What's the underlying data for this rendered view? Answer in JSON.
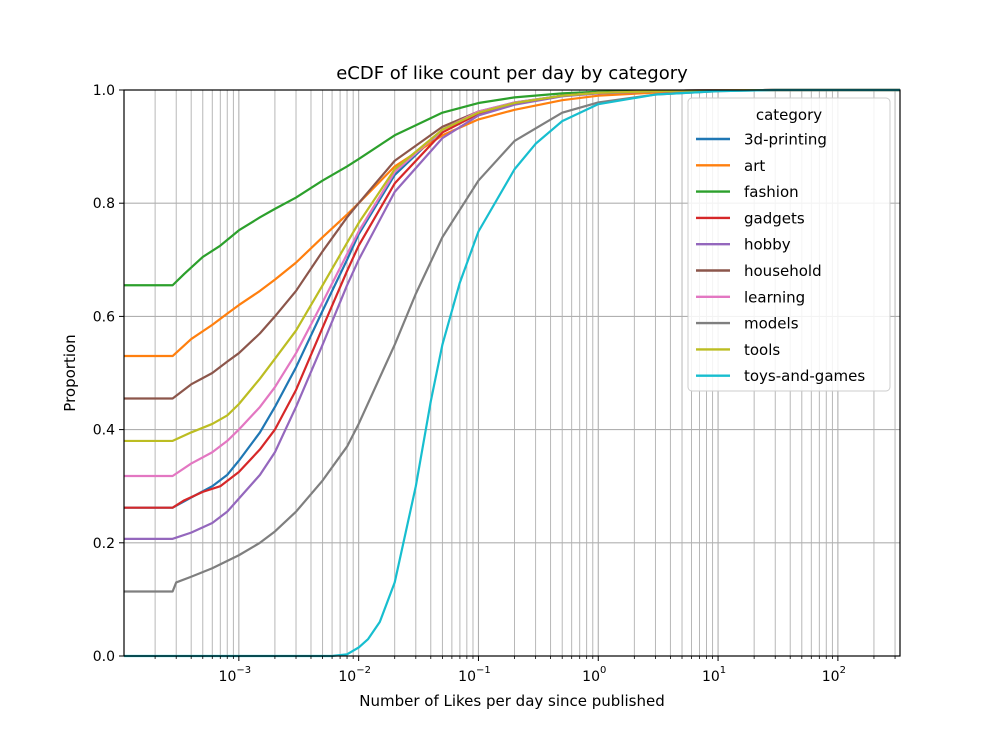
{
  "chart_data": {
    "type": "line",
    "title": "eCDF of like count per day by category",
    "xlabel": "Number of Likes per day since published",
    "ylabel": "Proportion",
    "x_scale": "log",
    "xlim": [
      0.00011,
      330
    ],
    "ylim": [
      0,
      1.0
    ],
    "grid": "major and minor",
    "x_ticks": [
      {
        "value": 0.001,
        "base": "10",
        "exp": "−3"
      },
      {
        "value": 0.01,
        "base": "10",
        "exp": "−2"
      },
      {
        "value": 0.1,
        "base": "10",
        "exp": "−1"
      },
      {
        "value": 1,
        "base": "10",
        "exp": "0"
      },
      {
        "value": 10,
        "base": "10",
        "exp": "1"
      },
      {
        "value": 100,
        "base": "10",
        "exp": "2"
      }
    ],
    "y_ticks": [
      {
        "value": 0.0,
        "label": "0.0"
      },
      {
        "value": 0.2,
        "label": "0.2"
      },
      {
        "value": 0.4,
        "label": "0.4"
      },
      {
        "value": 0.6,
        "label": "0.6"
      },
      {
        "value": 0.8,
        "label": "0.8"
      },
      {
        "value": 1.0,
        "label": "1.0"
      }
    ],
    "legend": {
      "title": "category",
      "placement": "top-right"
    },
    "series": [
      {
        "name": "3d-printing",
        "color": "#1f77b4",
        "points": [
          [
            0.00011,
            0.262
          ],
          [
            0.00028,
            0.262
          ],
          [
            0.0004,
            0.28
          ],
          [
            0.0006,
            0.3
          ],
          [
            0.0008,
            0.32
          ],
          [
            0.001,
            0.345
          ],
          [
            0.0015,
            0.395
          ],
          [
            0.002,
            0.44
          ],
          [
            0.003,
            0.51
          ],
          [
            0.005,
            0.61
          ],
          [
            0.008,
            0.7
          ],
          [
            0.01,
            0.745
          ],
          [
            0.02,
            0.85
          ],
          [
            0.05,
            0.93
          ],
          [
            0.1,
            0.962
          ],
          [
            0.2,
            0.978
          ],
          [
            0.5,
            0.99
          ],
          [
            1,
            0.995
          ],
          [
            5,
            0.999
          ],
          [
            30,
            1.0
          ],
          [
            330,
            1.0
          ]
        ]
      },
      {
        "name": "art",
        "color": "#ff7f0e",
        "points": [
          [
            0.00011,
            0.53
          ],
          [
            0.00028,
            0.53
          ],
          [
            0.0004,
            0.56
          ],
          [
            0.0006,
            0.585
          ],
          [
            0.0008,
            0.605
          ],
          [
            0.001,
            0.62
          ],
          [
            0.0015,
            0.645
          ],
          [
            0.002,
            0.665
          ],
          [
            0.003,
            0.695
          ],
          [
            0.005,
            0.74
          ],
          [
            0.008,
            0.78
          ],
          [
            0.01,
            0.8
          ],
          [
            0.02,
            0.865
          ],
          [
            0.05,
            0.92
          ],
          [
            0.1,
            0.948
          ],
          [
            0.2,
            0.965
          ],
          [
            0.5,
            0.982
          ],
          [
            1,
            0.99
          ],
          [
            5,
            0.998
          ],
          [
            30,
            1.0
          ],
          [
            330,
            1.0
          ]
        ]
      },
      {
        "name": "fashion",
        "color": "#2ca02c",
        "points": [
          [
            0.00011,
            0.655
          ],
          [
            0.00028,
            0.655
          ],
          [
            0.00035,
            0.675
          ],
          [
            0.0005,
            0.705
          ],
          [
            0.0007,
            0.725
          ],
          [
            0.001,
            0.752
          ],
          [
            0.0015,
            0.775
          ],
          [
            0.002,
            0.79
          ],
          [
            0.003,
            0.81
          ],
          [
            0.005,
            0.84
          ],
          [
            0.008,
            0.865
          ],
          [
            0.01,
            0.878
          ],
          [
            0.02,
            0.92
          ],
          [
            0.05,
            0.96
          ],
          [
            0.1,
            0.977
          ],
          [
            0.2,
            0.987
          ],
          [
            0.5,
            0.994
          ],
          [
            1,
            0.997
          ],
          [
            5,
            0.999
          ],
          [
            30,
            1.0
          ],
          [
            330,
            1.0
          ]
        ]
      },
      {
        "name": "gadgets",
        "color": "#d62728",
        "points": [
          [
            0.00011,
            0.262
          ],
          [
            0.00028,
            0.262
          ],
          [
            0.00035,
            0.275
          ],
          [
            0.0005,
            0.29
          ],
          [
            0.0007,
            0.3
          ],
          [
            0.001,
            0.325
          ],
          [
            0.0015,
            0.365
          ],
          [
            0.002,
            0.4
          ],
          [
            0.003,
            0.47
          ],
          [
            0.005,
            0.58
          ],
          [
            0.008,
            0.68
          ],
          [
            0.01,
            0.725
          ],
          [
            0.02,
            0.835
          ],
          [
            0.05,
            0.925
          ],
          [
            0.1,
            0.958
          ],
          [
            0.2,
            0.976
          ],
          [
            0.5,
            0.99
          ],
          [
            1,
            0.995
          ],
          [
            5,
            0.999
          ],
          [
            30,
            1.0
          ],
          [
            330,
            1.0
          ]
        ]
      },
      {
        "name": "hobby",
        "color": "#9467bd",
        "points": [
          [
            0.00011,
            0.207
          ],
          [
            0.00028,
            0.207
          ],
          [
            0.0004,
            0.218
          ],
          [
            0.0006,
            0.235
          ],
          [
            0.0008,
            0.255
          ],
          [
            0.001,
            0.278
          ],
          [
            0.0015,
            0.32
          ],
          [
            0.002,
            0.36
          ],
          [
            0.003,
            0.44
          ],
          [
            0.005,
            0.55
          ],
          [
            0.008,
            0.655
          ],
          [
            0.01,
            0.7
          ],
          [
            0.02,
            0.82
          ],
          [
            0.05,
            0.915
          ],
          [
            0.1,
            0.955
          ],
          [
            0.2,
            0.974
          ],
          [
            0.5,
            0.989
          ],
          [
            1,
            0.994
          ],
          [
            5,
            0.999
          ],
          [
            30,
            1.0
          ],
          [
            330,
            1.0
          ]
        ]
      },
      {
        "name": "household",
        "color": "#8c564b",
        "points": [
          [
            0.00011,
            0.455
          ],
          [
            0.00028,
            0.455
          ],
          [
            0.0004,
            0.48
          ],
          [
            0.0006,
            0.5
          ],
          [
            0.0008,
            0.52
          ],
          [
            0.001,
            0.535
          ],
          [
            0.0015,
            0.57
          ],
          [
            0.002,
            0.6
          ],
          [
            0.003,
            0.645
          ],
          [
            0.005,
            0.715
          ],
          [
            0.008,
            0.775
          ],
          [
            0.01,
            0.8
          ],
          [
            0.02,
            0.875
          ],
          [
            0.05,
            0.935
          ],
          [
            0.1,
            0.962
          ],
          [
            0.2,
            0.977
          ],
          [
            0.5,
            0.99
          ],
          [
            1,
            0.995
          ],
          [
            5,
            0.999
          ],
          [
            30,
            1.0
          ],
          [
            330,
            1.0
          ]
        ]
      },
      {
        "name": "learning",
        "color": "#e377c2",
        "points": [
          [
            0.00011,
            0.318
          ],
          [
            0.00028,
            0.318
          ],
          [
            0.0004,
            0.34
          ],
          [
            0.0006,
            0.36
          ],
          [
            0.0008,
            0.38
          ],
          [
            0.001,
            0.4
          ],
          [
            0.0015,
            0.44
          ],
          [
            0.002,
            0.475
          ],
          [
            0.003,
            0.535
          ],
          [
            0.005,
            0.625
          ],
          [
            0.008,
            0.71
          ],
          [
            0.01,
            0.75
          ],
          [
            0.02,
            0.855
          ],
          [
            0.05,
            0.93
          ],
          [
            0.1,
            0.962
          ],
          [
            0.2,
            0.978
          ],
          [
            0.5,
            0.99
          ],
          [
            1,
            0.995
          ],
          [
            5,
            0.999
          ],
          [
            30,
            1.0
          ],
          [
            330,
            1.0
          ]
        ]
      },
      {
        "name": "models",
        "color": "#7f7f7f",
        "points": [
          [
            0.00011,
            0.114
          ],
          [
            0.00028,
            0.114
          ],
          [
            0.0003,
            0.13
          ],
          [
            0.0004,
            0.14
          ],
          [
            0.0006,
            0.155
          ],
          [
            0.001,
            0.178
          ],
          [
            0.0015,
            0.2
          ],
          [
            0.002,
            0.22
          ],
          [
            0.003,
            0.255
          ],
          [
            0.005,
            0.31
          ],
          [
            0.008,
            0.37
          ],
          [
            0.01,
            0.41
          ],
          [
            0.02,
            0.55
          ],
          [
            0.03,
            0.64
          ],
          [
            0.05,
            0.74
          ],
          [
            0.1,
            0.84
          ],
          [
            0.2,
            0.91
          ],
          [
            0.5,
            0.96
          ],
          [
            1,
            0.978
          ],
          [
            3,
            0.992
          ],
          [
            10,
            0.998
          ],
          [
            30,
            1.0
          ],
          [
            330,
            1.0
          ]
        ]
      },
      {
        "name": "tools",
        "color": "#bcbd22",
        "points": [
          [
            0.00011,
            0.38
          ],
          [
            0.00028,
            0.38
          ],
          [
            0.0004,
            0.395
          ],
          [
            0.0006,
            0.41
          ],
          [
            0.0008,
            0.425
          ],
          [
            0.001,
            0.445
          ],
          [
            0.0015,
            0.49
          ],
          [
            0.002,
            0.525
          ],
          [
            0.003,
            0.575
          ],
          [
            0.005,
            0.655
          ],
          [
            0.008,
            0.73
          ],
          [
            0.01,
            0.765
          ],
          [
            0.02,
            0.86
          ],
          [
            0.05,
            0.93
          ],
          [
            0.1,
            0.96
          ],
          [
            0.2,
            0.977
          ],
          [
            0.5,
            0.99
          ],
          [
            1,
            0.995
          ],
          [
            5,
            0.999
          ],
          [
            30,
            1.0
          ],
          [
            330,
            1.0
          ]
        ]
      },
      {
        "name": "toys-and-games",
        "color": "#17becf",
        "points": [
          [
            0.00011,
            0.0
          ],
          [
            0.006,
            0.0
          ],
          [
            0.008,
            0.003
          ],
          [
            0.01,
            0.015
          ],
          [
            0.012,
            0.03
          ],
          [
            0.015,
            0.06
          ],
          [
            0.02,
            0.13
          ],
          [
            0.03,
            0.3
          ],
          [
            0.04,
            0.45
          ],
          [
            0.05,
            0.55
          ],
          [
            0.07,
            0.66
          ],
          [
            0.1,
            0.75
          ],
          [
            0.2,
            0.86
          ],
          [
            0.3,
            0.905
          ],
          [
            0.5,
            0.945
          ],
          [
            1,
            0.975
          ],
          [
            3,
            0.992
          ],
          [
            10,
            0.998
          ],
          [
            30,
            1.0
          ],
          [
            330,
            1.0
          ]
        ]
      }
    ]
  }
}
